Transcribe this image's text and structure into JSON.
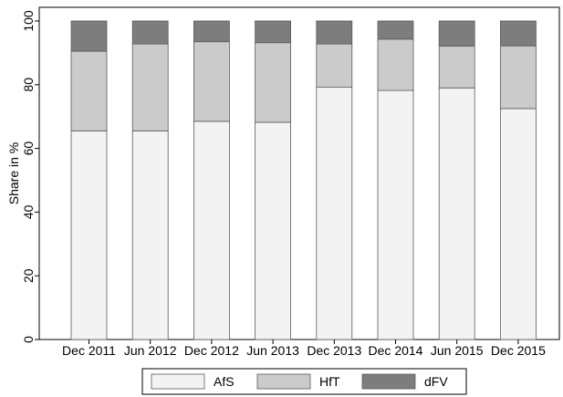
{
  "chart_data": {
    "type": "bar",
    "stacked": true,
    "categories": [
      "Dec 2011",
      "Jun 2012",
      "Dec 2012",
      "Jun 2013",
      "Dec 2013",
      "Dec 2014",
      "Jun 2015",
      "Dec 2015"
    ],
    "series": [
      {
        "name": "AfS",
        "color": "#f3f3f3",
        "values": [
          65.5,
          65.5,
          68.5,
          68.2,
          79.2,
          78.2,
          79.0,
          72.5
        ]
      },
      {
        "name": "HfT",
        "color": "#cbcbcb",
        "values": [
          25.0,
          27.3,
          25.0,
          25.0,
          13.6,
          16.1,
          13.1,
          19.7
        ]
      },
      {
        "name": "dFV",
        "color": "#7d7d7d",
        "values": [
          9.5,
          7.2,
          6.5,
          6.8,
          7.2,
          5.7,
          7.9,
          7.8
        ]
      }
    ],
    "ylabel": "Share in %",
    "xlabel": "",
    "ylim": [
      0,
      100
    ],
    "yticks": [
      0,
      20,
      40,
      60,
      80,
      100
    ],
    "grid": false,
    "legend_position": "bottom"
  }
}
